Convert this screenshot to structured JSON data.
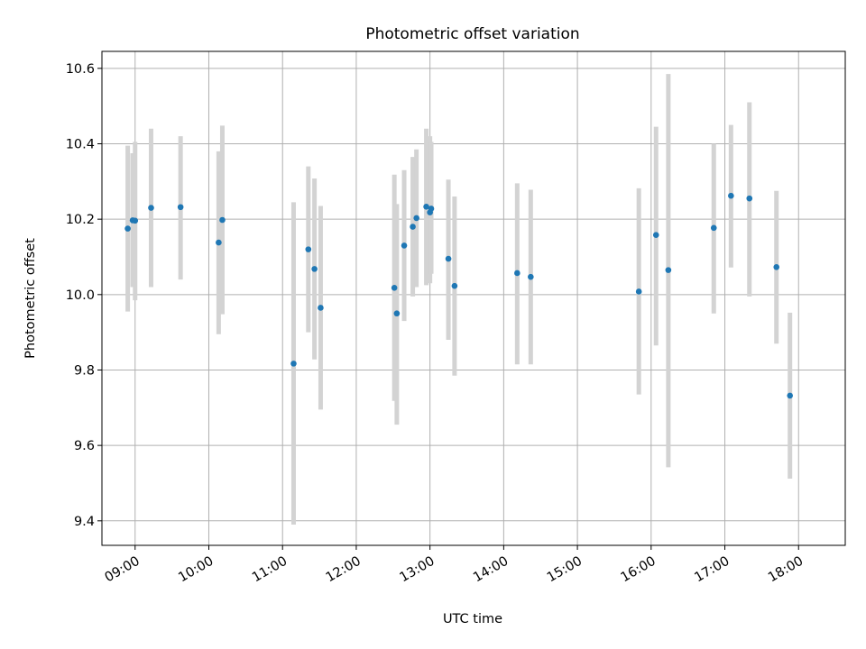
{
  "chart_data": {
    "type": "scatter",
    "title": "Photometric offset variation",
    "xlabel": "UTC time",
    "ylabel": "Photometric offset",
    "x_is_time": true,
    "xlim": [
      "08:33",
      "18:38"
    ],
    "ylim": [
      9.335,
      10.645
    ],
    "xticks": [
      "09:00",
      "10:00",
      "11:00",
      "12:00",
      "13:00",
      "14:00",
      "15:00",
      "16:00",
      "17:00",
      "18:00"
    ],
    "yticks": [
      "9.4",
      "9.6",
      "9.8",
      "10.0",
      "10.2",
      "10.4",
      "10.6"
    ],
    "grid": true,
    "marker_color": "#1f77b4",
    "errorbar_color": "#d3d3d3",
    "series": [
      {
        "points": [
          {
            "t": "08:54",
            "y": 10.175,
            "lo": 9.955,
            "hi": 10.395
          },
          {
            "t": "08:58",
            "y": 10.197,
            "lo": 10.02,
            "hi": 10.375
          },
          {
            "t": "09:00",
            "y": 10.196,
            "lo": 9.985,
            "hi": 10.405
          },
          {
            "t": "09:13",
            "y": 10.23,
            "lo": 10.02,
            "hi": 10.44
          },
          {
            "t": "09:37",
            "y": 10.232,
            "lo": 10.04,
            "hi": 10.42
          },
          {
            "t": "10:08",
            "y": 10.138,
            "lo": 9.895,
            "hi": 10.38
          },
          {
            "t": "10:11",
            "y": 10.198,
            "lo": 9.948,
            "hi": 10.448
          },
          {
            "t": "11:09",
            "y": 9.817,
            "lo": 9.39,
            "hi": 10.245
          },
          {
            "t": "11:21",
            "y": 10.12,
            "lo": 9.9,
            "hi": 10.34
          },
          {
            "t": "11:26",
            "y": 10.068,
            "lo": 9.828,
            "hi": 10.308
          },
          {
            "t": "11:31",
            "y": 9.965,
            "lo": 9.695,
            "hi": 10.235
          },
          {
            "t": "12:31",
            "y": 10.018,
            "lo": 9.718,
            "hi": 10.318
          },
          {
            "t": "12:33",
            "y": 9.95,
            "lo": 9.655,
            "hi": 10.24
          },
          {
            "t": "12:39",
            "y": 10.13,
            "lo": 9.93,
            "hi": 10.33
          },
          {
            "t": "12:46",
            "y": 10.18,
            "lo": 9.995,
            "hi": 10.365
          },
          {
            "t": "12:49",
            "y": 10.203,
            "lo": 10.02,
            "hi": 10.385
          },
          {
            "t": "12:57",
            "y": 10.233,
            "lo": 10.025,
            "hi": 10.44
          },
          {
            "t": "13:00",
            "y": 10.218,
            "lo": 10.03,
            "hi": 10.42
          },
          {
            "t": "13:01",
            "y": 10.228,
            "lo": 10.055,
            "hi": 10.405
          },
          {
            "t": "13:15",
            "y": 10.095,
            "lo": 9.88,
            "hi": 10.305
          },
          {
            "t": "13:20",
            "y": 10.023,
            "lo": 9.785,
            "hi": 10.26
          },
          {
            "t": "14:11",
            "y": 10.057,
            "lo": 9.815,
            "hi": 10.295
          },
          {
            "t": "14:22",
            "y": 10.047,
            "lo": 9.815,
            "hi": 10.278
          },
          {
            "t": "15:50",
            "y": 10.008,
            "lo": 9.735,
            "hi": 10.282
          },
          {
            "t": "16:04",
            "y": 10.158,
            "lo": 9.865,
            "hi": 10.445
          },
          {
            "t": "16:14",
            "y": 10.065,
            "lo": 9.542,
            "hi": 10.585
          },
          {
            "t": "16:51",
            "y": 10.177,
            "lo": 9.95,
            "hi": 10.4
          },
          {
            "t": "17:05",
            "y": 10.262,
            "lo": 10.072,
            "hi": 10.45
          },
          {
            "t": "17:20",
            "y": 10.255,
            "lo": 9.995,
            "hi": 10.51
          },
          {
            "t": "17:42",
            "y": 10.073,
            "lo": 9.87,
            "hi": 10.275
          },
          {
            "t": "17:53",
            "y": 9.732,
            "lo": 9.512,
            "hi": 9.952
          }
        ]
      }
    ]
  }
}
